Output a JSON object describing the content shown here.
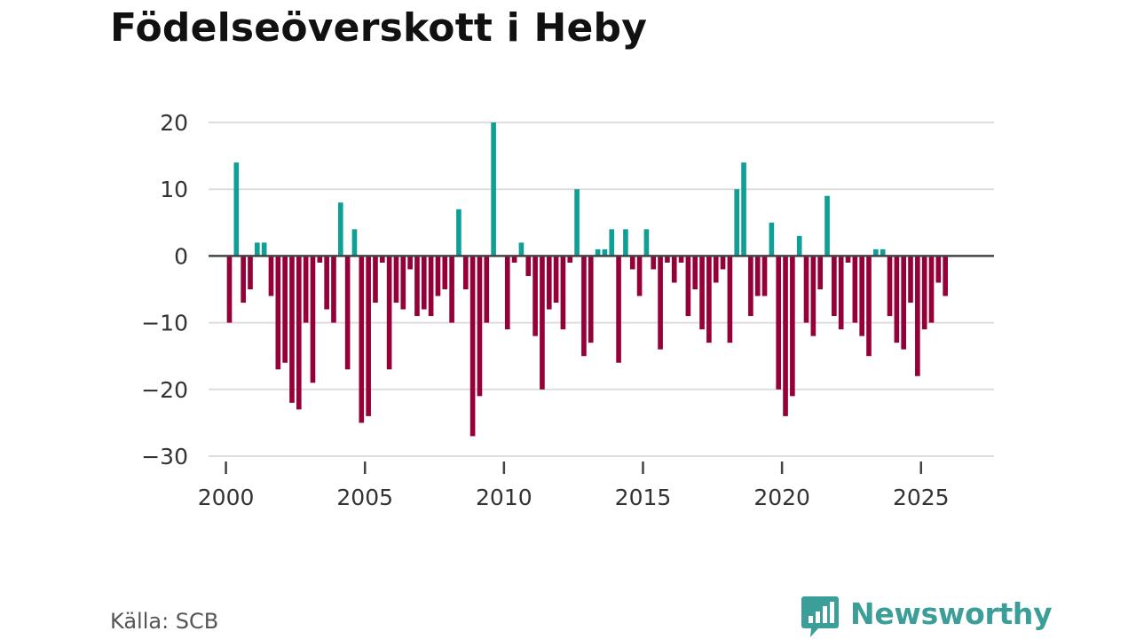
{
  "title": "Födelseöverskott i Heby",
  "source": "Källa: SCB",
  "brand": {
    "name": "Newsworthy",
    "logo_icon": "bar-chart-speech-bubble-icon"
  },
  "colors": {
    "positive": "#0e9f97",
    "negative": "#960038",
    "gridline": "#dddddd",
    "zero_line": "#444444",
    "text": "#333333",
    "brand": "#3b9e98"
  },
  "chart_data": {
    "type": "bar",
    "title": "Födelseöverskott i Heby",
    "xlabel": "",
    "ylabel": "",
    "ylim": [
      -30,
      20
    ],
    "y_ticks": [
      20,
      10,
      0,
      -10,
      -20,
      -30
    ],
    "y_tick_labels": [
      "20",
      "10",
      "0",
      "−10",
      "−20",
      "−30"
    ],
    "x_ticks": [
      2000,
      2005,
      2010,
      2015,
      2020,
      2025
    ],
    "x_tick_labels": [
      "2000",
      "2005",
      "2010",
      "2015",
      "2020",
      "2025"
    ],
    "xlim": [
      1999.375,
      2027.625
    ],
    "grid": true,
    "legend": "none",
    "x_period": "quarter",
    "start_period": "2000 Q1",
    "values": [
      -10,
      14,
      -7,
      -5,
      2,
      2,
      -6,
      -17,
      -16,
      -22,
      -23,
      -10,
      -19,
      -1,
      -8,
      -10,
      8,
      -17,
      4,
      -25,
      -24,
      -7,
      -1,
      -17,
      -7,
      -8,
      -2,
      -9,
      -8,
      -9,
      -6,
      -5,
      -10,
      7,
      -5,
      -27,
      -21,
      -10,
      20,
      0,
      -11,
      -1,
      2,
      -3,
      -12,
      -20,
      -8,
      -7,
      -11,
      -1,
      10,
      -15,
      -13,
      1,
      1,
      4,
      -16,
      4,
      -2,
      -6,
      4,
      -2,
      -14,
      -1,
      -4,
      -1,
      -9,
      -5,
      -11,
      -13,
      -4,
      -2,
      -13,
      10,
      14,
      -9,
      -6,
      -6,
      5,
      -20,
      -24,
      -21,
      3,
      -10,
      -12,
      -5,
      9,
      -9,
      -11,
      -1,
      -10,
      -12,
      -15,
      1,
      1,
      -9,
      -13,
      -14,
      -7,
      -18,
      -11,
      -10,
      -4,
      -6
    ]
  }
}
